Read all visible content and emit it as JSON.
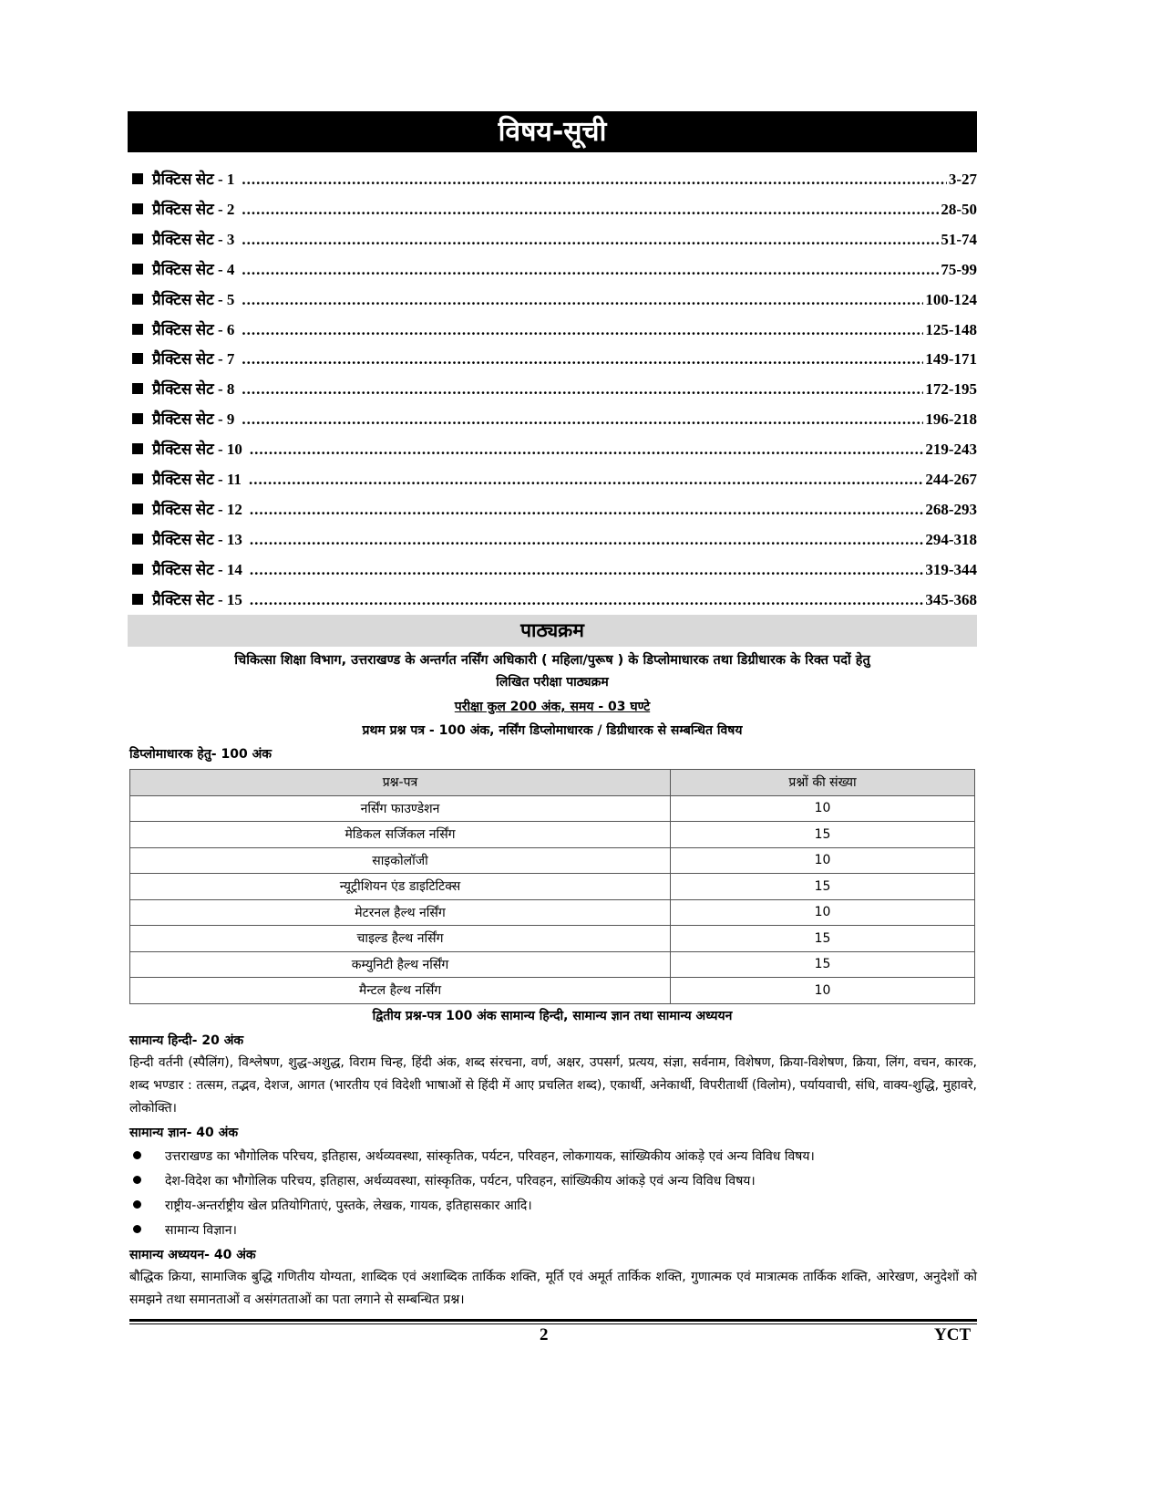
{
  "title": "विषय-सूची",
  "toc": [
    {
      "label": "प्रैक्टिस सेट - 1",
      "pages": "3-27"
    },
    {
      "label": "प्रैक्टिस सेट - 2",
      "pages": "28-50"
    },
    {
      "label": "प्रैक्टिस सेट - 3",
      "pages": "51-74"
    },
    {
      "label": "प्रैक्टिस सेट - 4",
      "pages": "75-99"
    },
    {
      "label": "प्रैक्टिस सेट - 5",
      "pages": "100-124"
    },
    {
      "label": "प्रैक्टिस सेट - 6",
      "pages": "125-148"
    },
    {
      "label": "प्रैक्टिस सेट - 7",
      "pages": "149-171"
    },
    {
      "label": "प्रैक्टिस सेट - 8",
      "pages": "172-195"
    },
    {
      "label": "प्रैक्टिस सेट - 9",
      "pages": "196-218"
    },
    {
      "label": "प्रैक्टिस सेट - 10",
      "pages": "219-243"
    },
    {
      "label": "प्रैक्टिस सेट - 11",
      "pages": "244-267"
    },
    {
      "label": "प्रैक्टिस सेट - 12",
      "pages": "268-293"
    },
    {
      "label": "प्रैक्टिस सेट - 13",
      "pages": "294-318"
    },
    {
      "label": "प्रैक्टिस सेट - 14",
      "pages": "319-344"
    },
    {
      "label": "प्रैक्टिस सेट - 15",
      "pages": "345-368"
    }
  ],
  "syllabus": {
    "heading": "पाठ्यक्रम",
    "intro_line1": "चिकित्सा शिक्षा विभाग, उत्तराखण्ड के अन्तर्गत नर्सिंग अधिकारी ( महिला/पुरूष ) के डिप्लोमाधारक तथा डिग्रीधारक के रिक्त पदों हेतु",
    "intro_line2": "लिखित परीक्षा पाठ्यक्रम",
    "exam_total": "परीक्षा कुल 200 अंक, समय - 03 घण्टे",
    "paper1": "प्रथम प्रश्न पत्र - 100 अंक, नर्सिंग डिप्लोमाधारक / डिग्रीधारक से सम्बन्धित विषय",
    "diploma_label": "डिप्लोमाधारक हेतु- 100 अंक",
    "table": {
      "headers": [
        "प्रश्न-पत्र",
        "प्रश्नों की संख्या"
      ],
      "rows": [
        [
          "नर्सिंग फाउण्डेशन",
          "10"
        ],
        [
          "मेडिकल सर्जिकल नर्सिंग",
          "15"
        ],
        [
          "साइकोलॉजी",
          "10"
        ],
        [
          "न्यूट्रीशियन एंड डाइटिटिक्स",
          "15"
        ],
        [
          "मेटरनल हैल्थ नर्सिंग",
          "10"
        ],
        [
          "चाइल्ड हैल्थ नर्सिंग",
          "15"
        ],
        [
          "कम्युनिटी हैल्थ नर्सिंग",
          "15"
        ],
        [
          "मैन्टल हैल्थ नर्सिंग",
          "10"
        ]
      ]
    },
    "paper2": "द्वितीय प्रश्न-पत्र 100 अंक सामान्य हिन्दी, सामान्य ज्ञान तथा सामान्य अध्ययन",
    "hindi_heading": "सामान्य हिन्दी- 20 अंक",
    "hindi_text": "हिन्दी वर्तनी (स्पैलिंग), विश्लेषण, शुद्ध-अशुद्ध, विराम चिन्ह, हिंदी अंक, शब्द संरचना, वर्ण, अक्षर, उपसर्ग, प्रत्यय, संज्ञा, सर्वनाम, विशेषण, क्रिया-विशेषण, क्रिया, लिंग, वचन, कारक, शब्द भण्डार : तत्सम, तद्भव, देशज, आगत (भारतीय एवं विदेशी भाषाओं से हिंदी में आए प्रचलित शब्द), एकार्थी, अनेकार्थी, विपरीतार्थी (विलोम), पर्यायवाची, संधि, वाक्य-शुद्धि, मुहावरे, लोकोक्ति।",
    "gk_heading": "सामान्य ज्ञान- 40 अंक",
    "gk_items": [
      "उत्तराखण्ड का भौगोलिक परिचय, इतिहास, अर्थव्यवस्था, सांस्कृतिक, पर्यटन, परिवहन, लोकगायक, सांख्यिकीय आंकड़े एवं अन्य विविध विषय।",
      "देश-विदेश का भौगोलिक परिचय, इतिहास, अर्थव्यवस्था, सांस्कृतिक, पर्यटन, परिवहन, सांख्यिकीय आंकड़े एवं अन्य विविध विषय।",
      "राष्ट्रीय-अन्तर्राष्ट्रीय खेल प्रतियोगिताएं, पुस्तके, लेखक, गायक, इतिहासकार आदि।",
      "सामान्य विज्ञान।"
    ],
    "gs_heading": "सामान्य अध्ययन- 40 अंक",
    "gs_text": "बौद्धिक क्रिया, सामाजिक बुद्धि गणितीय योग्यता, शाब्दिक एवं अशाब्दिक तार्किक शक्ति, मूर्ति एवं अमूर्त तार्किक शक्ति, गुणात्मक एवं मात्रात्मक तार्किक शक्ति, आरेखण, अनुदेशों को समझने तथा समानताओं व असंगतताओं का पता लगाने से सम्बन्धित प्रश्न।"
  },
  "footer": {
    "page_number": "2",
    "brand": "YCT"
  }
}
